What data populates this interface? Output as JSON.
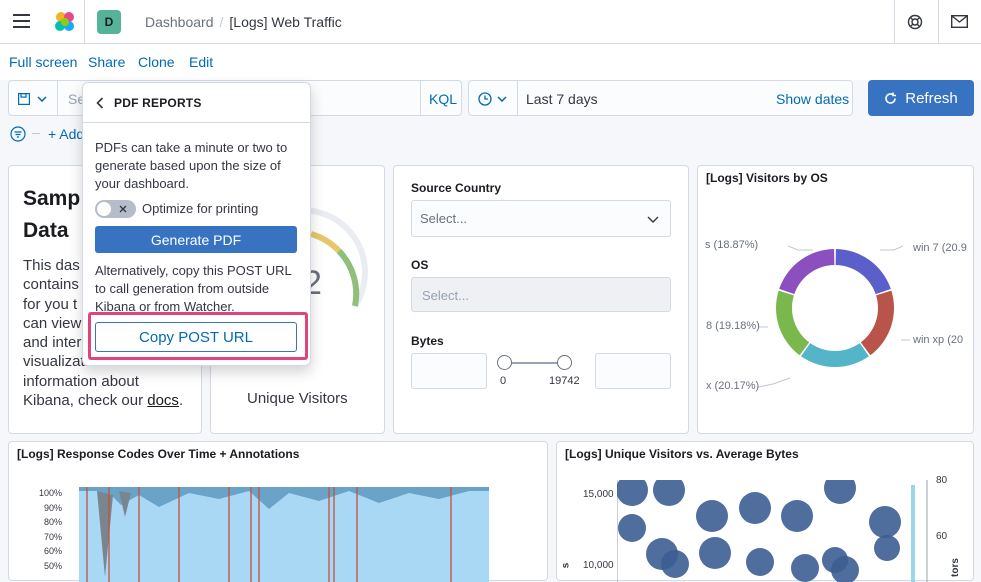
{
  "header": {
    "breadcrumb_root": "Dashboard",
    "breadcrumb_sep": "/",
    "breadcrumb_current": "[Logs] Web Traffic",
    "avatar_letter": "D"
  },
  "subnav": {
    "full_screen": "Full screen",
    "share": "Share",
    "clone": "Clone",
    "edit": "Edit"
  },
  "query": {
    "search_placeholder": "Se",
    "kql": "KQL",
    "time_range": "Last 7 days",
    "show_dates": "Show dates",
    "refresh": "Refresh",
    "add_filter": "+ Add"
  },
  "popover": {
    "title": "PDF REPORTS",
    "description": "PDFs can take a minute or two to generate based upon the size of your dashboard.",
    "optimize_label": "Optimize for printing",
    "generate": "Generate PDF",
    "alt_text": "Alternatively, copy this POST URL to call generation from outside Kibana or from Watcher.",
    "copy": "Copy POST URL"
  },
  "markdown_panel": {
    "title_line1": "Samp",
    "title_line2": "Data",
    "lines": [
      "This das",
      "contains",
      "for you t",
      "can view",
      "and inter",
      "visualizations. For more",
      "information about"
    ],
    "last_prefix": "Kibana, check our ",
    "docs_link": "docs",
    "last_suffix": "."
  },
  "gauge_panel": {
    "label": "Unique Visitors",
    "value_fragment": "2"
  },
  "controls_panel": {
    "source_country_label": "Source Country",
    "source_country_placeholder": "Select...",
    "os_label": "OS",
    "os_placeholder": "Select...",
    "bytes_label": "Bytes",
    "range_min": "0",
    "range_max": "19742"
  },
  "os_panel": {
    "title": "[Logs] Visitors by OS",
    "labels": {
      "top_left": "s (18.87%)",
      "top_right": "win 7 (20.9",
      "mid_left": "8 (19.18%)",
      "mid_right": "win xp (20",
      "bottom_left": "x (20.17%)"
    },
    "colors": [
      "#5a5fc9",
      "#b9544b",
      "#54b5c8",
      "#7ab84e",
      "#8c4fbf"
    ]
  },
  "response_panel": {
    "title": "[Logs] Response Codes Over Time + Annotations",
    "y_ticks": [
      "100%",
      "90%",
      "80%",
      "70%",
      "60%",
      "50%"
    ]
  },
  "visitors_panel": {
    "title": "[Logs] Unique Visitors vs. Average Bytes",
    "y_ticks": [
      "15,000",
      "10,000"
    ],
    "right_ticks": [
      "80",
      "60"
    ],
    "left_axis_fragment": "s",
    "right_axis_fragment": "tors"
  }
}
